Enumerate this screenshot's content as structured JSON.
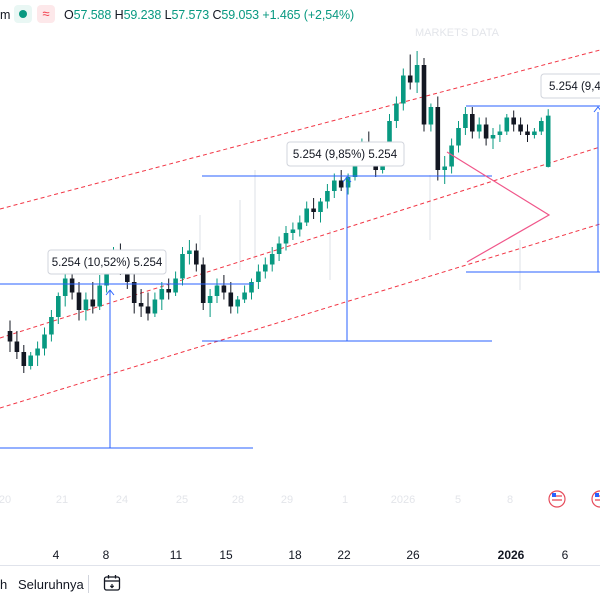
{
  "header": {
    "symbol_tail": "m",
    "ohlc": {
      "o_label": "O",
      "o_value": "57.588",
      "h_label": "H",
      "h_value": "59.238",
      "l_label": "L",
      "l_value": "57.573",
      "c_label": "C",
      "c_value": "59.053",
      "change": "+1.465 (+2,54%)"
    },
    "watermark": "MARKETS DATA"
  },
  "annotations": [
    {
      "label": "5.254 (10,52%) 5.254"
    },
    {
      "label": "5.254 (9,85%) 5.254"
    },
    {
      "label": "5.254 (9,4"
    }
  ],
  "x_axis": {
    "labels": [
      "4",
      "8",
      "11",
      "15",
      "18",
      "22",
      "26",
      "2026",
      "6"
    ],
    "ghost_labels": [
      "20",
      "21",
      "24",
      "25",
      "28",
      "29",
      "1",
      "2026",
      "5",
      "8"
    ]
  },
  "bottom": {
    "range_text": "h",
    "all_label": "Seluruhnya",
    "calendar_icon": "calendar-icon"
  },
  "colors": {
    "up": "#089981",
    "down": "#131722",
    "trend": "#f23645",
    "measure": "#2962ff",
    "triangle": "#f0568a"
  },
  "chart_data": {
    "type": "candlestick",
    "y_range": [
      47.5,
      61.5
    ],
    "candles": [
      [
        52.9,
        53.2,
        52.3,
        52.6
      ],
      [
        52.6,
        52.9,
        52.1,
        52.3
      ],
      [
        52.3,
        52.5,
        51.7,
        51.9
      ],
      [
        51.9,
        52.3,
        51.8,
        52.2
      ],
      [
        52.2,
        52.6,
        51.9,
        52.4
      ],
      [
        52.4,
        53.0,
        52.2,
        52.8
      ],
      [
        52.8,
        53.5,
        52.6,
        53.3
      ],
      [
        53.3,
        54.0,
        53.1,
        53.9
      ],
      [
        53.9,
        54.6,
        53.6,
        54.4
      ],
      [
        54.4,
        54.8,
        53.8,
        54.0
      ],
      [
        54.0,
        54.3,
        53.2,
        53.5
      ],
      [
        53.5,
        54.0,
        53.2,
        53.8
      ],
      [
        53.8,
        54.3,
        53.4,
        53.6
      ],
      [
        53.6,
        54.5,
        53.5,
        54.2
      ],
      [
        54.2,
        55.1,
        54.0,
        54.9
      ],
      [
        54.9,
        55.3,
        54.6,
        55.0
      ],
      [
        55.0,
        55.4,
        54.5,
        54.7
      ],
      [
        54.7,
        55.0,
        54.1,
        54.3
      ],
      [
        54.3,
        54.6,
        53.4,
        53.7
      ],
      [
        53.7,
        54.1,
        53.3,
        53.6
      ],
      [
        53.6,
        54.0,
        53.2,
        53.4
      ],
      [
        53.4,
        54.0,
        53.3,
        53.8
      ],
      [
        53.8,
        54.3,
        53.5,
        54.1
      ],
      [
        54.1,
        54.4,
        53.8,
        54.0
      ],
      [
        54.0,
        54.6,
        53.9,
        54.4
      ],
      [
        54.4,
        55.3,
        54.2,
        55.1
      ],
      [
        55.1,
        55.5,
        54.8,
        55.2
      ],
      [
        55.2,
        55.4,
        54.6,
        54.8
      ],
      [
        54.8,
        55.0,
        53.5,
        53.7
      ],
      [
        53.7,
        54.1,
        53.3,
        53.9
      ],
      [
        53.9,
        54.4,
        53.7,
        54.2
      ],
      [
        54.2,
        54.5,
        53.8,
        54.0
      ],
      [
        54.0,
        54.3,
        53.4,
        53.6
      ],
      [
        53.6,
        53.9,
        53.4,
        53.8
      ],
      [
        53.8,
        54.2,
        53.7,
        54.0
      ],
      [
        54.0,
        54.4,
        53.8,
        54.3
      ],
      [
        54.3,
        54.8,
        54.1,
        54.6
      ],
      [
        54.6,
        55.0,
        54.4,
        54.8
      ],
      [
        54.8,
        55.3,
        54.6,
        55.1
      ],
      [
        55.1,
        55.6,
        54.9,
        55.4
      ],
      [
        55.4,
        55.9,
        55.2,
        55.7
      ],
      [
        55.7,
        56.0,
        55.5,
        55.8
      ],
      [
        55.8,
        56.2,
        55.6,
        56.0
      ],
      [
        56.0,
        56.6,
        55.9,
        56.4
      ],
      [
        56.4,
        56.7,
        56.1,
        56.3
      ],
      [
        56.3,
        56.7,
        56.0,
        56.6
      ],
      [
        56.6,
        57.1,
        56.4,
        56.9
      ],
      [
        56.9,
        57.4,
        56.7,
        57.2
      ],
      [
        57.2,
        57.5,
        56.9,
        57.0
      ],
      [
        57.0,
        57.4,
        56.8,
        57.3
      ],
      [
        57.3,
        58.0,
        57.2,
        57.8
      ],
      [
        57.8,
        58.4,
        57.6,
        58.2
      ],
      [
        58.2,
        58.6,
        57.8,
        58.0
      ],
      [
        58.0,
        58.1,
        57.3,
        57.5
      ],
      [
        57.5,
        58.3,
        57.4,
        58.2
      ],
      [
        58.2,
        59.1,
        58.0,
        58.9
      ],
      [
        58.9,
        59.6,
        58.7,
        59.4
      ],
      [
        59.4,
        60.4,
        59.2,
        60.2
      ],
      [
        60.2,
        60.8,
        59.8,
        60.0
      ],
      [
        60.0,
        60.9,
        59.7,
        60.5
      ],
      [
        60.5,
        60.7,
        58.6,
        58.8
      ],
      [
        58.8,
        59.4,
        58.6,
        59.3
      ],
      [
        59.3,
        59.6,
        57.2,
        57.5
      ],
      [
        57.5,
        57.9,
        57.1,
        57.6
      ],
      [
        57.6,
        58.4,
        57.4,
        58.2
      ],
      [
        58.2,
        58.9,
        58.0,
        58.7
      ],
      [
        58.7,
        59.3,
        58.5,
        59.1
      ],
      [
        59.1,
        59.3,
        58.4,
        58.6
      ],
      [
        58.6,
        59.0,
        58.4,
        58.8
      ],
      [
        58.8,
        59.0,
        58.2,
        58.4
      ],
      [
        58.4,
        58.7,
        58.1,
        58.5
      ],
      [
        58.5,
        58.8,
        58.3,
        58.6
      ],
      [
        58.6,
        59.1,
        58.5,
        59.0
      ],
      [
        59.0,
        59.2,
        58.6,
        58.8
      ],
      [
        58.8,
        59.0,
        58.5,
        58.6
      ],
      [
        58.6,
        58.8,
        58.3,
        58.5
      ],
      [
        58.5,
        58.7,
        58.4,
        58.6
      ],
      [
        58.6,
        59.0,
        58.5,
        58.9
      ],
      [
        57.588,
        59.238,
        57.573,
        59.053
      ]
    ]
  }
}
